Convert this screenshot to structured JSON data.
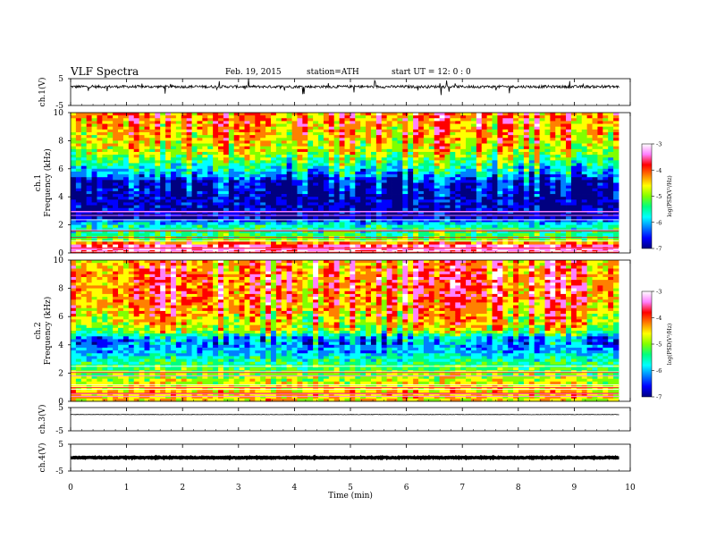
{
  "header": {
    "title": "VLF  Spectra",
    "date": "Feb. 19, 2015",
    "station": "station=ATH",
    "start": "start  UT  =    12: 0  : 0"
  },
  "colors": {
    "colormap": [
      "#000080",
      "#0000ff",
      "#0080ff",
      "#00ffff",
      "#00ff80",
      "#80ff00",
      "#ffff00",
      "#ff8000",
      "#ff0000",
      "#ff80ff",
      "#ffffff"
    ],
    "trace": "#000000"
  },
  "chart_data": [
    {
      "type": "line",
      "panel": "ch1-waveform",
      "ylabel": "ch.1(V)",
      "ylim": [
        -5,
        5
      ],
      "yticks": [
        "5",
        "-5"
      ],
      "baseline": 2.0,
      "spread": 1.0,
      "x": [
        0,
        9.8
      ]
    },
    {
      "type": "heatmap",
      "panel": "ch1-spectrogram",
      "ylabel": "ch.1 Frequency (kHz)",
      "ylim": [
        0,
        10
      ],
      "yticks": [
        "0",
        "2",
        "4",
        "6",
        "8",
        "10"
      ],
      "xlim": [
        0,
        9.8
      ],
      "colorbar": {
        "label": "log(PSD(V²/Hz)",
        "range": [
          -7,
          -3
        ],
        "ticks": [
          "-3",
          "-4",
          "-5",
          "-6",
          "-7"
        ]
      },
      "levels": {
        "freq_khz": [
          0,
          0.5,
          1,
          2,
          2.5,
          3,
          4,
          5,
          6,
          7,
          8,
          9,
          10
        ],
        "log_psd": [
          -3.2,
          -3.4,
          -5.2,
          -5.6,
          -6.8,
          -6.8,
          -6.8,
          -6.6,
          -5.6,
          -4.8,
          -4.4,
          -4.2,
          -4.0
        ]
      }
    },
    {
      "type": "heatmap",
      "panel": "ch2-spectrogram",
      "ylabel": "ch.2 Frequency (kHz)",
      "ylim": [
        0,
        10
      ],
      "yticks": [
        "0",
        "2",
        "4",
        "6",
        "8",
        "10"
      ],
      "xlim": [
        0,
        9.8
      ],
      "colorbar": {
        "label": "log(PSD(V²/Hz)",
        "range": [
          -7,
          -3
        ],
        "ticks": [
          "-3",
          "-4",
          "-5",
          "-6",
          "-7"
        ]
      },
      "levels": {
        "freq_khz": [
          0,
          0.5,
          1,
          2,
          3,
          3.5,
          4,
          4.5,
          5,
          6,
          7,
          8,
          9,
          10
        ],
        "log_psd": [
          -4.6,
          -4.4,
          -4.6,
          -5.0,
          -5.6,
          -6.0,
          -6.2,
          -6.0,
          -4.8,
          -4.4,
          -4.1,
          -4.0,
          -4.0,
          -4.2
        ]
      }
    },
    {
      "type": "line",
      "panel": "ch3-waveform",
      "ylabel": "ch.3(V)",
      "ylim": [
        -5,
        5
      ],
      "yticks": [
        "5",
        "-5"
      ],
      "baseline": 2.0,
      "spread": 0.15,
      "x": [
        0,
        9.8
      ]
    },
    {
      "type": "line",
      "panel": "ch4-waveform",
      "ylabel": "ch.4(V)",
      "ylim": [
        -5,
        5
      ],
      "yticks": [
        "5",
        "-5"
      ],
      "baseline": 0.0,
      "spread": 0.35,
      "x": [
        0,
        9.8
      ]
    }
  ],
  "xaxis": {
    "label": "Time  (min)",
    "range": [
      0,
      10
    ],
    "ticks": [
      "0",
      "1",
      "2",
      "3",
      "4",
      "5",
      "6",
      "7",
      "8",
      "9",
      "10"
    ]
  }
}
